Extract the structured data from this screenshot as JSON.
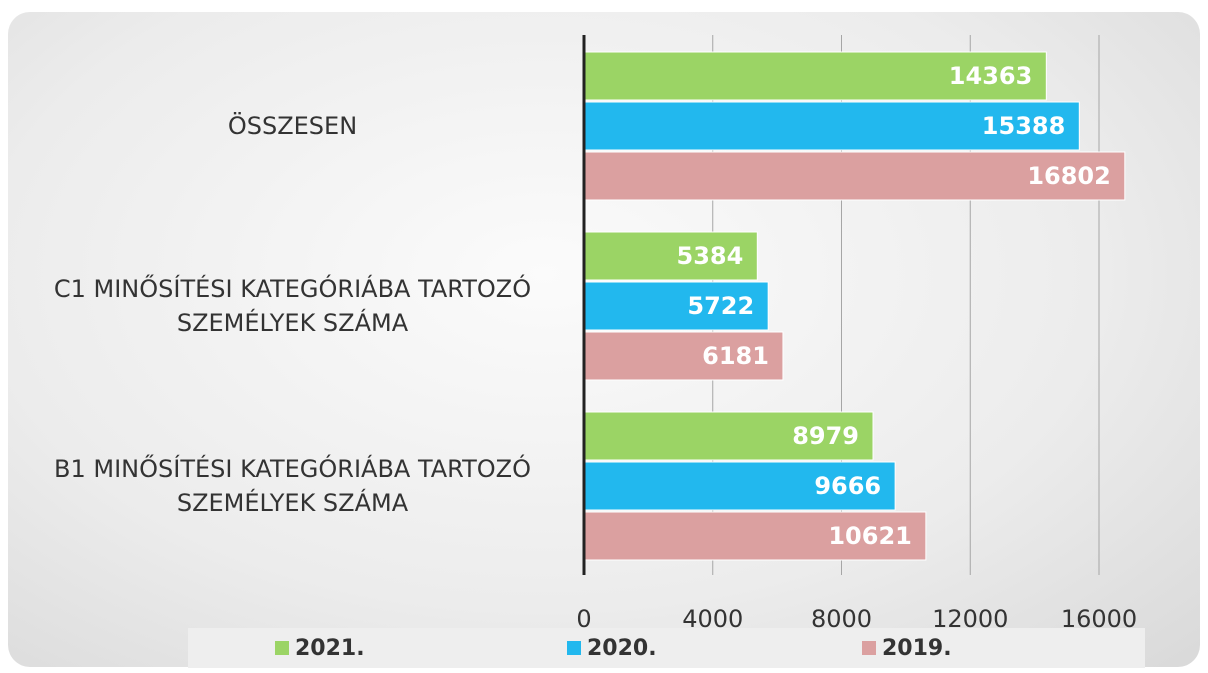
{
  "chart_data": {
    "type": "barh",
    "categories": [
      "ÖSSZESEN",
      "C1 MINŐSÍTÉSI KATEGÓRIÁBA TARTOZÓ SZEMÉLYEK SZÁMA",
      "B1 MINŐSÍTÉSI KATEGÓRIÁBA TARTOZÓ SZEMÉLYEK SZÁMA"
    ],
    "series": [
      {
        "name": "2021.",
        "color": "#9bd465",
        "values": [
          14363,
          5384,
          8979
        ]
      },
      {
        "name": "2020.",
        "color": "#22b8ee",
        "values": [
          15388,
          5722,
          9666
        ]
      },
      {
        "name": "2019.",
        "color": "#dba0a0",
        "values": [
          16802,
          6181,
          10621
        ]
      }
    ],
    "xlim": [
      0,
      18000
    ],
    "xticks": [
      0,
      4000,
      8000,
      12000,
      16000
    ],
    "grid": true,
    "legend": "bottom"
  }
}
